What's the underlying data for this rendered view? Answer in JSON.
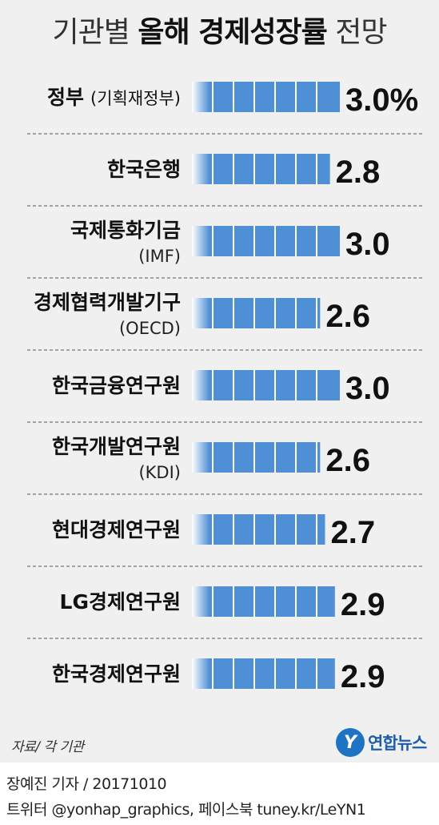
{
  "title": {
    "prefix": "기관별",
    "bold": "올해 경제성장률",
    "suffix": "전망"
  },
  "chart_data": {
    "type": "bar",
    "categories": [
      {
        "name": "정부",
        "sub": "(기획재정부)",
        "inline": true
      },
      {
        "name": "한국은행",
        "sub": ""
      },
      {
        "name": "국제통화기금",
        "sub": "(IMF)"
      },
      {
        "name": "경제협력개발기구",
        "sub": "(OECD)"
      },
      {
        "name": "한국금융연구원",
        "sub": ""
      },
      {
        "name": "한국개발연구원",
        "sub": "(KDI)"
      },
      {
        "name": "현대경제연구원",
        "sub": ""
      },
      {
        "name": "LG경제연구원",
        "sub": ""
      },
      {
        "name": "한국경제연구원",
        "sub": ""
      }
    ],
    "values": [
      3.0,
      2.8,
      3.0,
      2.6,
      3.0,
      2.6,
      2.7,
      2.9,
      2.9
    ],
    "value_labels": [
      "3.0%",
      "2.8",
      "3.0",
      "2.6",
      "3.0",
      "2.6",
      "2.7",
      "2.9",
      "2.9"
    ],
    "bar_color": "#4f8fd6"
  },
  "source": "자료/ 각 기관",
  "logo": {
    "mark": "Y",
    "text": "연합뉴스"
  },
  "credit": {
    "line1": "장예진 기자 / 20171010",
    "line2": "트위터 @yonhap_graphics, 페이스북 tuney.kr/LeYN1"
  }
}
